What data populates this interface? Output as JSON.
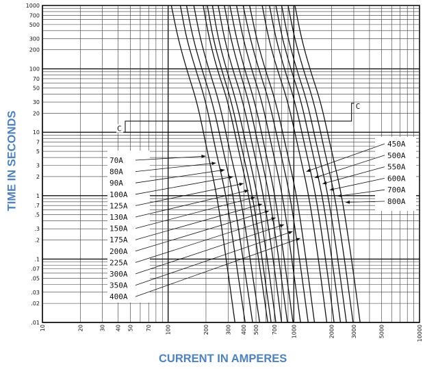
{
  "chart_data": {
    "type": "line",
    "title": "",
    "xlabel": "CURRENT IN AMPERES",
    "ylabel": "TIME IN SECONDS",
    "x_scale": "log",
    "y_scale": "log",
    "xlim": [
      10,
      10000
    ],
    "ylim": [
      0.01,
      1000
    ],
    "grid": true,
    "x_tick_labels": [
      "10",
      "20",
      "30",
      "40",
      "50",
      "70",
      "100",
      "200",
      "300",
      "400",
      "500",
      "700",
      "1000",
      "2000",
      "3000",
      "5000",
      "10000"
    ],
    "x_tick_values": [
      10,
      20,
      30,
      40,
      50,
      70,
      100,
      200,
      300,
      400,
      500,
      700,
      1000,
      2000,
      3000,
      5000,
      10000
    ],
    "y_tick_labels": [
      "1000",
      "700",
      "500",
      "300",
      "200",
      "100",
      "70",
      "50",
      "30",
      "20",
      "10",
      "7",
      "5",
      "3",
      "2",
      "1",
      ".7",
      ".5",
      ".3",
      ".2",
      ".1",
      ".07",
      ".05",
      ".03",
      ".02",
      ".01"
    ],
    "y_tick_values": [
      1000,
      700,
      500,
      300,
      200,
      100,
      70,
      50,
      30,
      20,
      10,
      7,
      5,
      3,
      2,
      1,
      0.7,
      0.5,
      0.3,
      0.2,
      0.1,
      0.07,
      0.05,
      0.03,
      0.02,
      0.01
    ],
    "series": [
      {
        "name": "70A",
        "x": [
          106,
          120,
          140,
          170,
          205,
          245,
          290,
          340
        ],
        "y": [
          1000,
          300,
          100,
          30,
          5,
          1,
          0.1,
          0.01
        ]
      },
      {
        "name": "80A",
        "x": [
          125,
          140,
          165,
          200,
          240,
          290,
          345,
          410
        ],
        "y": [
          1000,
          300,
          100,
          30,
          5,
          1,
          0.1,
          0.01
        ]
      },
      {
        "name": "90A",
        "x": [
          140,
          158,
          185,
          225,
          275,
          330,
          395,
          470
        ],
        "y": [
          1000,
          300,
          100,
          30,
          5,
          1,
          0.1,
          0.01
        ]
      },
      {
        "name": "100A",
        "x": [
          160,
          180,
          210,
          255,
          310,
          375,
          450,
          535
        ],
        "y": [
          1000,
          300,
          100,
          30,
          5,
          1,
          0.1,
          0.01
        ]
      },
      {
        "name": "125A",
        "x": [
          190,
          212,
          245,
          300,
          365,
          440,
          525,
          620
        ],
        "y": [
          1000,
          300,
          100,
          30,
          5,
          1,
          0.1,
          0.01
        ]
      },
      {
        "name": "130A",
        "x": [
          205,
          228,
          265,
          320,
          390,
          470,
          560,
          660
        ],
        "y": [
          1000,
          300,
          100,
          30,
          5,
          1,
          0.1,
          0.01
        ]
      },
      {
        "name": "150A",
        "x": [
          225,
          250,
          290,
          350,
          430,
          515,
          615,
          720
        ],
        "y": [
          1000,
          300,
          100,
          30,
          5,
          1,
          0.1,
          0.01
        ]
      },
      {
        "name": "175A",
        "x": [
          250,
          280,
          325,
          395,
          480,
          575,
          685,
          800
        ],
        "y": [
          1000,
          300,
          100,
          30,
          5,
          1,
          0.1,
          0.01
        ]
      },
      {
        "name": "200A",
        "x": [
          280,
          315,
          365,
          440,
          535,
          640,
          760,
          890
        ],
        "y": [
          1000,
          300,
          100,
          30,
          5,
          1,
          0.1,
          0.01
        ]
      },
      {
        "name": "225A",
        "x": [
          310,
          350,
          405,
          490,
          595,
          710,
          840,
          985
        ],
        "y": [
          1000,
          300,
          100,
          30,
          5,
          1,
          0.1,
          0.01
        ]
      },
      {
        "name": "300A",
        "x": [
          350,
          395,
          460,
          560,
          680,
          815,
          965,
          1130
        ],
        "y": [
          1000,
          300,
          100,
          30,
          5,
          1,
          0.1,
          0.01
        ]
      },
      {
        "name": "350A",
        "x": [
          395,
          450,
          525,
          640,
          780,
          935,
          1110,
          1300
        ],
        "y": [
          1000,
          300,
          100,
          30,
          5,
          1,
          0.1,
          0.01
        ]
      },
      {
        "name": "400A",
        "x": [
          445,
          505,
          590,
          720,
          880,
          1055,
          1250,
          1460
        ],
        "y": [
          1000,
          300,
          100,
          30,
          5,
          1,
          0.1,
          0.01
        ]
      },
      {
        "name": "450A",
        "x": [
          560,
          630,
          735,
          900,
          1100,
          1320,
          1570,
          1830
        ],
        "y": [
          1000,
          300,
          100,
          30,
          5,
          1,
          0.1,
          0.01
        ]
      },
      {
        "name": "500A",
        "x": [
          640,
          720,
          840,
          1025,
          1250,
          1500,
          1790,
          2090
        ],
        "y": [
          1000,
          300,
          100,
          30,
          5,
          1,
          0.1,
          0.01
        ]
      },
      {
        "name": "550A",
        "x": [
          720,
          810,
          945,
          1150,
          1400,
          1690,
          2010,
          2350
        ],
        "y": [
          1000,
          300,
          100,
          30,
          5,
          1,
          0.1,
          0.01
        ]
      },
      {
        "name": "600A",
        "x": [
          800,
          900,
          1050,
          1280,
          1560,
          1880,
          2240,
          2620
        ],
        "y": [
          1000,
          300,
          100,
          30,
          5,
          1,
          0.1,
          0.01
        ]
      },
      {
        "name": "700A",
        "x": [
          900,
          1015,
          1185,
          1445,
          1760,
          2120,
          2530,
          2960
        ],
        "y": [
          1000,
          300,
          100,
          30,
          5,
          1,
          0.1,
          0.01
        ]
      },
      {
        "name": "800A",
        "x": [
          1020,
          1150,
          1340,
          1640,
          2000,
          2410,
          2880,
          3370
        ],
        "y": [
          1000,
          300,
          100,
          30,
          5,
          1,
          0.1,
          0.01
        ]
      }
    ],
    "annotations": [
      {
        "text": "C",
        "x": 45,
        "y": 11.5
      },
      {
        "text": "C",
        "x": 2950,
        "y": 26
      }
    ]
  }
}
